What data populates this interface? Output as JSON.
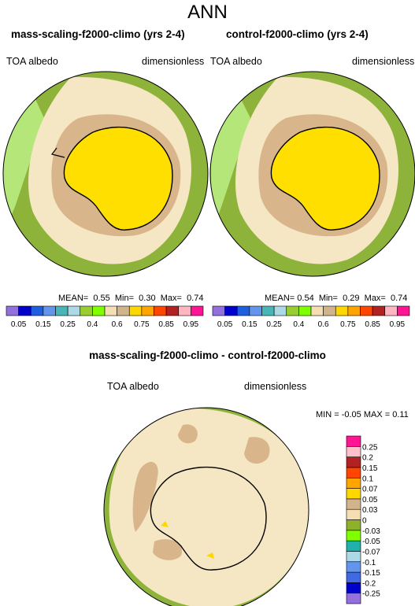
{
  "main_title": "ANN",
  "panels": [
    {
      "title": "mass-scaling-f2000-climo (yrs 2-4)",
      "field": "TOA albedo",
      "units": "dimensionless",
      "mean_label": "MEAN=",
      "mean": "0.55",
      "min_label": "Min=",
      "min": "0.30",
      "max_label": "Max=",
      "max": "0.74"
    },
    {
      "title": "control-f2000-climo (yrs 2-4)",
      "field": "TOA albedo",
      "units": "dimensionless",
      "mean_label": "MEAN=",
      "mean": "0.54",
      "min_label": "Min=",
      "min": "0.29",
      "max_label": "Max=",
      "max": "0.74"
    }
  ],
  "difference": {
    "title": "mass-scaling-f2000-climo - control-f2000-climo",
    "field": "TOA albedo",
    "units": "dimensionless",
    "minmax_text": "MIN = -0.05 MAX =  0.11"
  },
  "colorbar_abs": {
    "colors": [
      "#9370db",
      "#0000cd",
      "#1e5fe0",
      "#6495ed",
      "#48b6b6",
      "#add8e6",
      "#9acd32",
      "#7fff00",
      "#f5deb3",
      "#d2b48c",
      "#ffd700",
      "#ffa500",
      "#ff4500",
      "#b22222",
      "#ffb6c1",
      "#ff1493"
    ],
    "labels": [
      "0.05",
      "0.15",
      "0.25",
      "0.4",
      "0.6",
      "0.75",
      "0.85",
      "0.95"
    ],
    "ticks": [
      "0.05",
      "0.1",
      "0.15",
      "0.2",
      "0.25",
      "0.3",
      "0.4",
      "0.5",
      "0.6",
      "0.7",
      "0.75",
      "0.8",
      "0.85",
      "0.9",
      "0.95"
    ]
  },
  "colorbar_diff": {
    "colors": [
      "#9370db",
      "#0000cd",
      "#4169e1",
      "#6495ed",
      "#add8e6",
      "#20b2aa",
      "#7fff00",
      "#8fb02a",
      "#f5deb3",
      "#d2b48c",
      "#ffd700",
      "#ffa500",
      "#ff4500",
      "#b22222",
      "#ffc0cb",
      "#ff1493"
    ],
    "labels": [
      "-0.25",
      "-0.2",
      "-0.15",
      "-0.1",
      "-0.07",
      "-0.05",
      "-0.03",
      "0",
      "0.03",
      "0.05",
      "0.07",
      "0.1",
      "0.15",
      "0.2",
      "0.25"
    ]
  },
  "map_colors": {
    "ocean_green": "#8db33a",
    "light_green": "#b4e67a",
    "wheat": "#f5e6c4",
    "tan": "#d9b58c",
    "yellow": "#ffdf00",
    "blue": "#1e5fe0",
    "orange": "#ffa500"
  }
}
